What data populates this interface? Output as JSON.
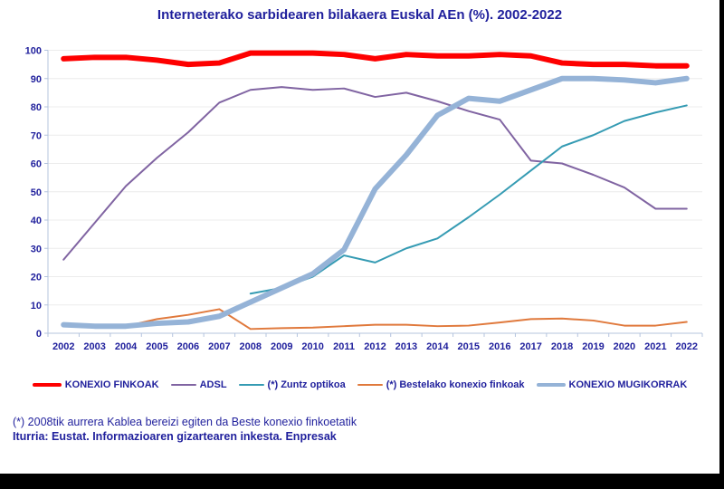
{
  "page": {
    "title": "Interneterako sarbidearen bilakaera Euskal AEn (%). 2002-2022"
  },
  "footnote": "(*) 2008tik aurrera Kablea bereizi egiten da Beste konexio finkoetatik",
  "source": "Iturria: Eustat. Informazioaren gizartearen inkesta. Enpresak",
  "colors": {
    "text_navy": "#1f1f9c",
    "axis": "#b4c4de",
    "grid": "#ececec",
    "background": "#ffffff",
    "screen_border": "#000000"
  },
  "chart_data": {
    "type": "line",
    "title": "Interneterako sarbidearen bilakaera Euskal AEn (%). 2002-2022",
    "xlabel": "",
    "ylabel": "",
    "ylim": [
      0,
      100
    ],
    "ytick_step": 10,
    "grid": true,
    "legend_position": "bottom",
    "x": [
      2002,
      2003,
      2004,
      2005,
      2006,
      2007,
      2008,
      2009,
      2010,
      2011,
      2012,
      2013,
      2014,
      2015,
      2016,
      2017,
      2018,
      2019,
      2020,
      2021,
      2022
    ],
    "series": [
      {
        "name": "KONEXIO FINKOAK",
        "color": "#fe0000",
        "width": 6,
        "values": [
          97,
          97.5,
          97.5,
          96.5,
          95,
          95.5,
          99,
          99,
          99,
          98.5,
          97,
          98.5,
          98,
          98,
          98.5,
          98,
          95.5,
          95,
          95,
          94.5,
          94.5
        ]
      },
      {
        "name": "ADSL",
        "color": "#8064a2",
        "width": 2,
        "values": [
          26,
          39,
          52,
          62,
          71,
          81.5,
          86,
          87,
          86,
          86.5,
          83.5,
          85,
          82,
          78.5,
          75.5,
          61,
          60,
          56,
          51.5,
          44,
          44
        ]
      },
      {
        "name": "(*) Zuntz optikoa",
        "color": "#359bb3",
        "width": 2,
        "values": [
          null,
          null,
          null,
          null,
          null,
          null,
          14,
          16,
          20,
          27.5,
          25,
          30,
          33.5,
          41,
          49,
          57.5,
          66,
          70,
          75,
          78,
          80.5
        ]
      },
      {
        "name": "(*) Bestelako konexio finkoak",
        "color": "#e0793c",
        "width": 2,
        "values": [
          2.5,
          2.2,
          2.5,
          5,
          6.5,
          8.5,
          1.5,
          1.8,
          2,
          2.5,
          3,
          3,
          2.5,
          2.7,
          3.8,
          5,
          5.2,
          4.5,
          2.7,
          2.7,
          4
        ]
      },
      {
        "name": "KONEXIO MUGIKORRAK",
        "color": "#95b3d7",
        "width": 6,
        "values": [
          3,
          2.5,
          2.5,
          3.5,
          4,
          6,
          11,
          16,
          21,
          29.5,
          51,
          63,
          77,
          83,
          82,
          86,
          90,
          90,
          89.5,
          88.5,
          90
        ]
      }
    ]
  }
}
